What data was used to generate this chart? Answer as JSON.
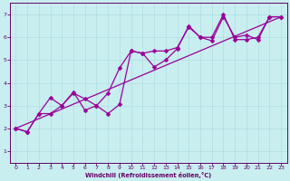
{
  "title": "",
  "xlabel": "Windchill (Refroidissement éolien,°C)",
  "ylabel": "",
  "bg_color": "#c8eef0",
  "line_color": "#990099",
  "grid_color": "#b0dde0",
  "xlim": [
    -0.5,
    23.5
  ],
  "ylim": [
    0.5,
    7.5
  ],
  "yticks": [
    1,
    2,
    3,
    4,
    5,
    6,
    7
  ],
  "xticks": [
    0,
    1,
    2,
    3,
    4,
    5,
    6,
    7,
    8,
    9,
    10,
    11,
    12,
    13,
    14,
    15,
    16,
    17,
    18,
    19,
    20,
    21,
    22,
    23
  ],
  "line1_x": [
    0,
    1,
    2,
    3,
    4,
    5,
    6,
    7,
    8,
    9,
    10,
    11,
    12,
    13,
    14,
    15,
    16,
    17,
    18,
    19,
    20,
    21,
    22,
    23
  ],
  "line1_y": [
    2.0,
    1.85,
    2.65,
    3.35,
    3.0,
    3.6,
    2.8,
    3.0,
    2.65,
    3.05,
    5.4,
    5.3,
    4.7,
    5.0,
    5.5,
    6.5,
    6.0,
    5.85,
    6.9,
    6.0,
    6.1,
    5.9,
    6.9,
    6.9
  ],
  "line2_x": [
    0,
    1,
    2,
    3,
    4,
    5,
    6,
    7,
    8,
    9,
    10,
    11,
    12,
    13,
    14,
    15,
    16,
    17,
    18,
    19,
    20,
    21,
    22,
    23
  ],
  "line2_y": [
    2.0,
    1.85,
    2.65,
    2.65,
    3.0,
    3.55,
    3.3,
    3.0,
    3.55,
    4.65,
    5.4,
    5.3,
    5.4,
    5.4,
    5.55,
    6.45,
    6.0,
    6.0,
    7.0,
    5.9,
    5.9,
    6.0,
    6.9,
    6.9
  ],
  "line3_x": [
    0,
    23
  ],
  "line3_y": [
    2.0,
    6.9
  ],
  "marker_size": 2.5,
  "lw": 0.9
}
